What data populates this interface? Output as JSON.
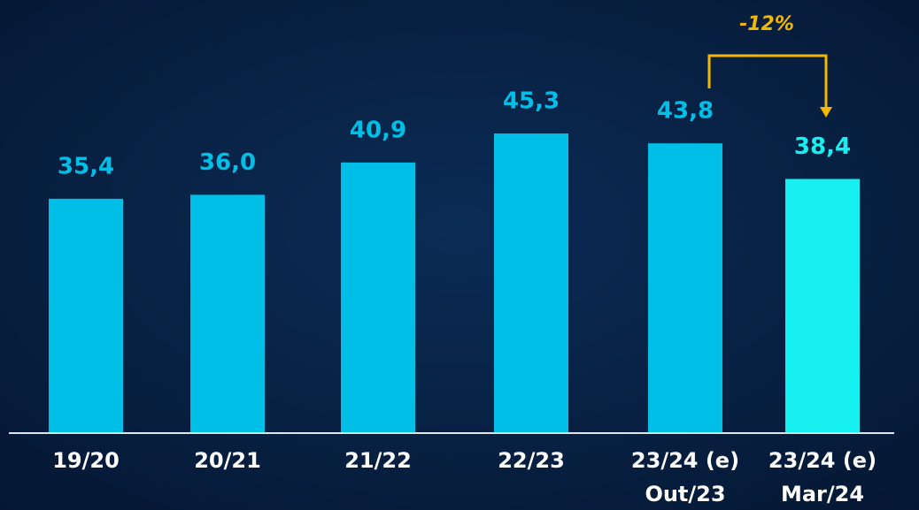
{
  "chart_data": {
    "type": "bar",
    "categories": [
      [
        "19/20"
      ],
      [
        "20/21"
      ],
      [
        "21/22"
      ],
      [
        "22/23"
      ],
      [
        "23/24 (e)",
        "Out/23"
      ],
      [
        "23/24 (e)",
        "Mar/24"
      ]
    ],
    "values": [
      35.4,
      36.0,
      40.9,
      45.3,
      43.8,
      38.4
    ],
    "value_labels": [
      "35,4",
      "36,0",
      "40,9",
      "45,3",
      "43,8",
      "38,4"
    ],
    "colors": [
      "#00bfe6",
      "#00bfe6",
      "#00bfe6",
      "#00bfe6",
      "#00bfe6",
      "#16f0f0"
    ],
    "ylim": [
      0,
      65
    ],
    "annotation": "-12%",
    "annotation_color": "#f2b705"
  }
}
